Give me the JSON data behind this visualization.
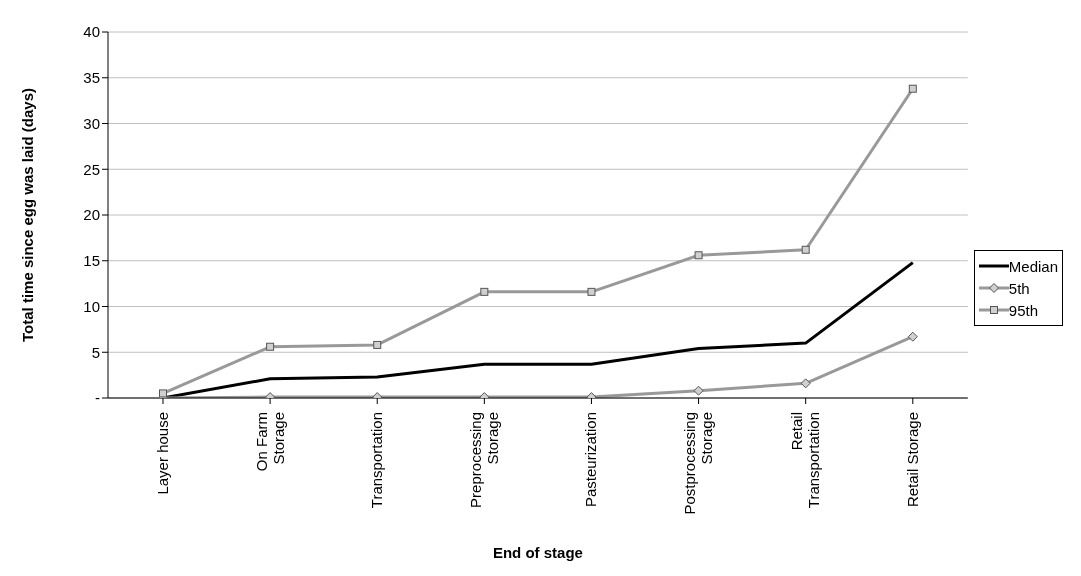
{
  "chart_data": {
    "type": "line",
    "xlabel": "End of stage",
    "ylabel": "Total time since egg was laid (days)",
    "categories": [
      "Layer house",
      "On Farm Storage",
      "Transportation",
      "Preprocessing Storage",
      "Pasteurization",
      "Postprocessing Storage",
      "Retail Transportation",
      "Retail Storage"
    ],
    "series": [
      {
        "name": "Median",
        "color": "#000000",
        "marker": "none",
        "values": [
          0,
          2.1,
          2.3,
          3.7,
          3.7,
          5.4,
          6.0,
          14.8
        ]
      },
      {
        "name": "5th",
        "color": "#999999",
        "marker": "diamond",
        "values": [
          0,
          0.1,
          0.1,
          0.1,
          0.1,
          0.8,
          1.6,
          6.7
        ]
      },
      {
        "name": "95th",
        "color": "#999999",
        "marker": "square",
        "values": [
          0.5,
          5.6,
          5.8,
          11.6,
          11.6,
          15.6,
          16.2,
          33.8
        ]
      }
    ],
    "ylim": [
      0,
      40
    ],
    "yticks": [
      {
        "value": 0,
        "label": "-"
      },
      5,
      10,
      15,
      20,
      25,
      30,
      35,
      40
    ],
    "grid": "y",
    "legend": "right",
    "line_style": "solid"
  }
}
